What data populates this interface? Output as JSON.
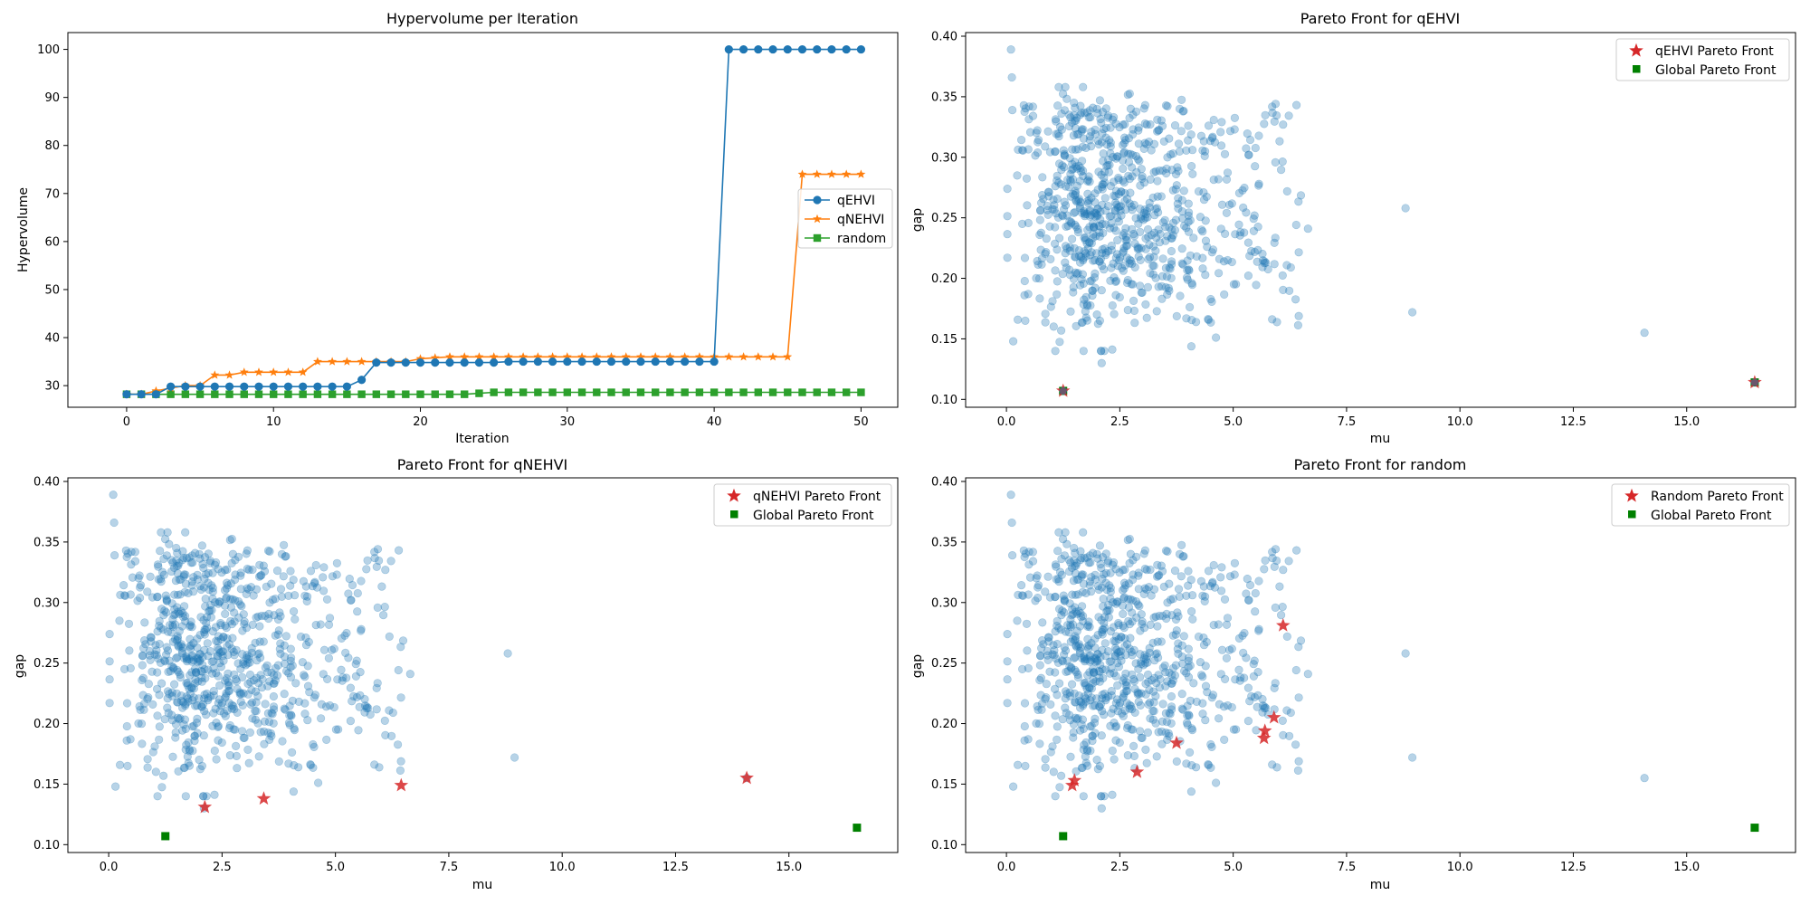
{
  "colors": {
    "scatter": "#1f77b4",
    "qehvi": "#1f77b4",
    "qnehvi": "#ff7f0e",
    "random": "#2ca02c",
    "pareto_star": "#d62728",
    "global_front": "#008000"
  },
  "chart_data": [
    {
      "type": "line",
      "title": "Hypervolume per Iteration",
      "xlabel": "Iteration",
      "ylabel": "Hypervolume",
      "xlim": [
        -4,
        52.5
      ],
      "ylim": [
        25.5,
        103.5
      ],
      "xticks": [
        0,
        10,
        20,
        30,
        40,
        50
      ],
      "yticks": [
        30,
        40,
        50,
        60,
        70,
        80,
        90,
        100
      ],
      "x": [
        0,
        1,
        2,
        3,
        4,
        5,
        6,
        7,
        8,
        9,
        10,
        11,
        12,
        13,
        14,
        15,
        16,
        17,
        18,
        19,
        20,
        21,
        22,
        23,
        24,
        25,
        26,
        27,
        28,
        29,
        30,
        31,
        32,
        33,
        34,
        35,
        36,
        37,
        38,
        39,
        40,
        41,
        42,
        43,
        44,
        45,
        46,
        47,
        48,
        49,
        50
      ],
      "legend_position": "center-right",
      "series": [
        {
          "name": "qEHVI",
          "marker": "circle",
          "values": [
            28.2,
            28.2,
            28.2,
            29.8,
            29.8,
            29.8,
            29.8,
            29.8,
            29.8,
            29.8,
            29.8,
            29.8,
            29.8,
            29.8,
            29.8,
            29.8,
            31.2,
            34.8,
            34.8,
            34.8,
            34.8,
            34.8,
            34.8,
            34.8,
            34.8,
            34.8,
            35.0,
            35.0,
            35.0,
            35.0,
            35.0,
            35.0,
            35.0,
            35.0,
            35.0,
            35.0,
            35.0,
            35.0,
            35.0,
            35.0,
            35.0,
            100,
            100,
            100,
            100,
            100,
            100,
            100,
            100,
            100,
            100
          ]
        },
        {
          "name": "qNEHVI",
          "marker": "star",
          "values": [
            28.2,
            28.2,
            28.9,
            29.5,
            30.0,
            30.0,
            32.2,
            32.2,
            32.8,
            32.8,
            32.8,
            32.8,
            32.8,
            35.0,
            35.0,
            35.0,
            35.0,
            35.0,
            35.0,
            35.0,
            35.6,
            35.8,
            36.0,
            36.0,
            36.0,
            36.0,
            36.0,
            36.0,
            36.0,
            36.0,
            36.0,
            36.0,
            36.0,
            36.0,
            36.0,
            36.0,
            36.0,
            36.0,
            36.0,
            36.0,
            36.0,
            36.0,
            36.0,
            36.0,
            36.0,
            36.0,
            74,
            74,
            74,
            74,
            74
          ]
        },
        {
          "name": "random",
          "marker": "square",
          "values": [
            28.2,
            28.2,
            28.2,
            28.2,
            28.2,
            28.2,
            28.2,
            28.2,
            28.2,
            28.2,
            28.2,
            28.2,
            28.2,
            28.2,
            28.2,
            28.2,
            28.2,
            28.2,
            28.2,
            28.2,
            28.2,
            28.2,
            28.2,
            28.2,
            28.4,
            28.6,
            28.6,
            28.6,
            28.6,
            28.6,
            28.6,
            28.6,
            28.6,
            28.6,
            28.6,
            28.6,
            28.6,
            28.6,
            28.6,
            28.6,
            28.6,
            28.6,
            28.6,
            28.6,
            28.6,
            28.6,
            28.6,
            28.6,
            28.6,
            28.6,
            28.6
          ]
        }
      ]
    },
    {
      "type": "scatter",
      "title": "Pareto Front for qEHVI",
      "xlabel": "mu",
      "ylabel": "gap",
      "xlim": [
        -0.9,
        17.4
      ],
      "ylim": [
        0.0935,
        0.403
      ],
      "xticks": [
        0.0,
        2.5,
        5.0,
        7.5,
        10.0,
        12.5,
        15.0
      ],
      "yticks": [
        0.1,
        0.15,
        0.2,
        0.25,
        0.3,
        0.35,
        0.4
      ],
      "legend_position": "top-right",
      "legend": [
        "qEHVI Pareto Front",
        "Global Pareto Front"
      ],
      "pareto_points": [
        [
          1.25,
          0.107
        ],
        [
          16.5,
          0.114
        ]
      ],
      "global_points": [
        [
          1.25,
          0.107
        ],
        [
          16.5,
          0.114
        ]
      ]
    },
    {
      "type": "scatter",
      "title": "Pareto Front for qNEHVI",
      "xlabel": "mu",
      "ylabel": "gap",
      "xlim": [
        -0.9,
        17.4
      ],
      "ylim": [
        0.0935,
        0.403
      ],
      "xticks": [
        0.0,
        2.5,
        5.0,
        7.5,
        10.0,
        12.5,
        15.0
      ],
      "yticks": [
        0.1,
        0.15,
        0.2,
        0.25,
        0.3,
        0.35,
        0.4
      ],
      "legend_position": "top-right",
      "legend": [
        "qNEHVI Pareto Front",
        "Global Pareto Front"
      ],
      "pareto_points": [
        [
          2.12,
          0.131
        ],
        [
          3.42,
          0.138
        ],
        [
          6.45,
          0.149
        ],
        [
          14.07,
          0.155
        ]
      ],
      "global_points": [
        [
          1.25,
          0.107
        ],
        [
          16.5,
          0.114
        ]
      ]
    },
    {
      "type": "scatter",
      "title": "Pareto Front for random",
      "xlabel": "mu",
      "ylabel": "gap",
      "xlim": [
        -0.9,
        17.4
      ],
      "ylim": [
        0.0935,
        0.403
      ],
      "xticks": [
        0.0,
        2.5,
        5.0,
        7.5,
        10.0,
        12.5,
        15.0
      ],
      "yticks": [
        0.1,
        0.15,
        0.2,
        0.25,
        0.3,
        0.35,
        0.4
      ],
      "legend_position": "top-right",
      "legend": [
        "Random Pareto Front",
        "Global Pareto Front"
      ],
      "pareto_points": [
        [
          1.45,
          0.149
        ],
        [
          1.5,
          0.153
        ],
        [
          2.88,
          0.16
        ],
        [
          3.75,
          0.184
        ],
        [
          5.68,
          0.188
        ],
        [
          5.7,
          0.194
        ],
        [
          5.9,
          0.205
        ],
        [
          6.1,
          0.281
        ]
      ],
      "global_points": [
        [
          1.25,
          0.107
        ],
        [
          16.5,
          0.114
        ]
      ]
    }
  ]
}
